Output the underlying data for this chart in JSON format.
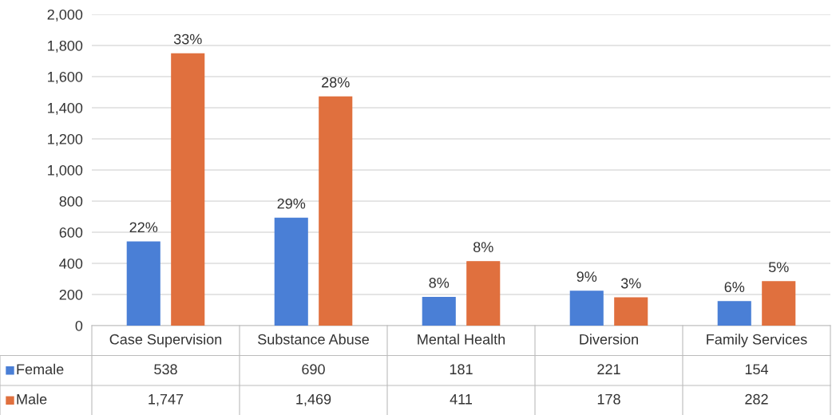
{
  "chart_data": {
    "type": "bar",
    "categories": [
      "Case Supervision",
      "Substance Abuse",
      "Mental Health",
      "Diversion",
      "Family Services"
    ],
    "series": [
      {
        "name": "Female",
        "color": "#4a7fd6",
        "values": [
          538,
          690,
          181,
          221,
          154
        ],
        "value_labels": [
          "538",
          "690",
          "181",
          "221",
          "154"
        ]
      },
      {
        "name": "Male",
        "color": "#e0703e",
        "values": [
          1747,
          1469,
          411,
          178,
          282
        ],
        "value_labels": [
          "1,747",
          "1,469",
          "411",
          "178",
          "282"
        ]
      }
    ],
    "annotations": [
      "22%",
      "29%",
      "8%",
      "9%",
      "6%",
      "33%",
      "28%",
      "8%",
      "3%",
      "5%"
    ],
    "ylim": [
      0,
      2000
    ],
    "yticks": [
      {
        "value": 0,
        "label": "0"
      },
      {
        "value": 200,
        "label": "200"
      },
      {
        "value": 400,
        "label": "400"
      },
      {
        "value": 600,
        "label": "600"
      },
      {
        "value": 800,
        "label": "800"
      },
      {
        "value": 1000,
        "label": "1,000"
      },
      {
        "value": 1200,
        "label": "1,200"
      },
      {
        "value": 1400,
        "label": "1,400"
      },
      {
        "value": 1600,
        "label": "1,600"
      },
      {
        "value": 1800,
        "label": "1,800"
      },
      {
        "value": 2000,
        "label": "2,000"
      }
    ],
    "grid": "y",
    "legend": "bottom left"
  }
}
